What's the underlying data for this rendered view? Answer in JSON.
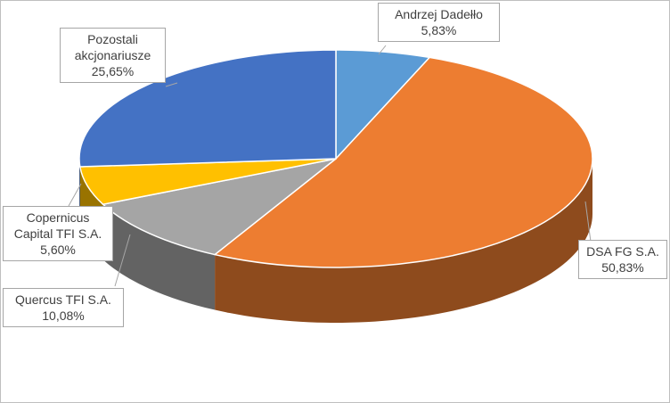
{
  "chart_data": {
    "type": "pie",
    "categories": [
      "Andrzej Dadełło",
      "DSA FG S.A.",
      "Quercus TFI S.A.",
      "Copernicus Capital TFI S.A.",
      "Pozostali akcjonariusze"
    ],
    "values": [
      5.83,
      50.83,
      10.08,
      5.6,
      25.65
    ],
    "value_labels": [
      "5,83%",
      "50,83%",
      "10,08%",
      "5,60%",
      "25,65%"
    ],
    "colors": [
      "#5b9bd5",
      "#ed7d31",
      "#a5a5a5",
      "#ffc000",
      "#4472c4"
    ]
  }
}
